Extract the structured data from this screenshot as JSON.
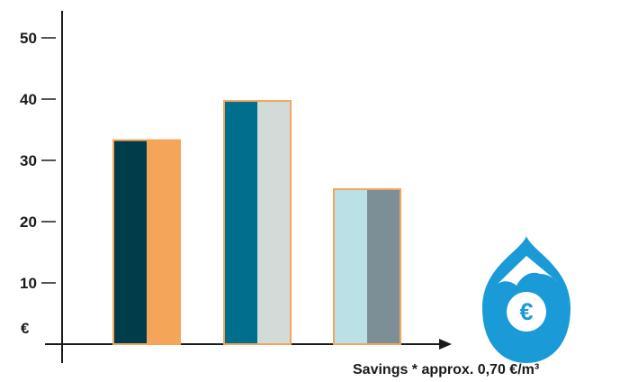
{
  "chart_data": {
    "type": "bar",
    "categories": [
      "",
      "",
      ""
    ],
    "series_values": [
      33.3,
      39.7,
      25.3
    ],
    "bars": [
      {
        "value": 33.3,
        "left_color": "#003d4a",
        "right_color": "#f5a55a"
      },
      {
        "value": 39.7,
        "left_color": "#006f8e",
        "right_color": "#d1dbd8"
      },
      {
        "value": 25.3,
        "left_color": "#b9e1e6",
        "right_color": "#7c8e96"
      }
    ],
    "bar_outline_color": "#f5a55a",
    "title": "",
    "xlabel": "Savings * approx. 0,70 €/m³",
    "ylabel": "€",
    "ylim": [
      0,
      50
    ],
    "yticks": [
      10,
      20,
      30,
      40,
      50
    ],
    "grid": false,
    "legend": "none"
  },
  "axis": {
    "y_unit_label": "€",
    "color": "#1a1a1a"
  },
  "footnote": {
    "text": "Savings * approx. 0,70 €/m³"
  },
  "icon": {
    "name": "water-drop-euro-icon",
    "symbol": "€",
    "color": "#1a9ad6"
  }
}
